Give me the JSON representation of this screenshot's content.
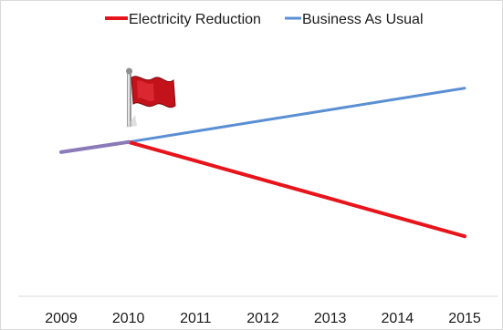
{
  "chart_data": {
    "type": "line",
    "title": "",
    "xlabel": "",
    "ylabel": "",
    "categories": [
      "2009",
      "2010",
      "2011",
      "2012",
      "2013",
      "2014",
      "2015"
    ],
    "series": [
      {
        "name": "Electricity Reduction",
        "color": "#e8141c",
        "values": [
          null,
          100,
          94.4,
          88.8,
          83.2,
          77.6,
          72
        ]
      },
      {
        "name": "Business As Usual",
        "color": "#5b8fd4",
        "values": [
          97,
          100,
          103.2,
          106.4,
          109.6,
          112.8,
          116
        ]
      }
    ],
    "overlap_segment_color": "#8b7ab8",
    "legend_position": "top",
    "grid": false,
    "axis_color": "#d9d9d9",
    "ylim": [
      55,
      130
    ],
    "marker_icon": "red-flag-icon",
    "marker_at": "2010"
  }
}
